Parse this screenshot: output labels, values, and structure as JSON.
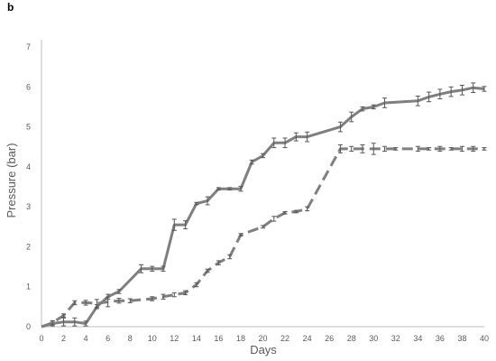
{
  "panel_label": "b",
  "chart_data": {
    "type": "line",
    "title": "",
    "xlabel": "Days",
    "ylabel": "Pressure (bar)",
    "xlim": [
      0,
      40
    ],
    "ylim": [
      0,
      7
    ],
    "xticks": [
      0,
      2,
      4,
      6,
      8,
      10,
      12,
      14,
      16,
      18,
      20,
      22,
      24,
      26,
      28,
      30,
      32,
      34,
      36,
      38,
      40
    ],
    "yticks": [
      0,
      1,
      2,
      3,
      4,
      5,
      6,
      7
    ],
    "grid": false,
    "legend": "none",
    "series": [
      {
        "style": "solid",
        "color": "#7f7f7f",
        "points": [
          {
            "x": 0,
            "y": 0,
            "err": 0
          },
          {
            "x": 1,
            "y": 0.08,
            "err": 0.06
          },
          {
            "x": 2,
            "y": 0.12,
            "err": 0.1
          },
          {
            "x": 3,
            "y": 0.12,
            "err": 0.1
          },
          {
            "x": 4,
            "y": 0.08,
            "err": 0.06
          },
          {
            "x": 5,
            "y": 0.5,
            "err": 0.05
          },
          {
            "x": 6,
            "y": 0.75,
            "err": 0.06
          },
          {
            "x": 7,
            "y": 0.88,
            "err": 0.05
          },
          {
            "x": 9,
            "y": 1.45,
            "err": 0.1
          },
          {
            "x": 10,
            "y": 1.45,
            "err": 0.06
          },
          {
            "x": 11,
            "y": 1.45,
            "err": 0.06
          },
          {
            "x": 12,
            "y": 2.55,
            "err": 0.14
          },
          {
            "x": 13,
            "y": 2.55,
            "err": 0.1
          },
          {
            "x": 14,
            "y": 3.08,
            "err": 0.03
          },
          {
            "x": 15,
            "y": 3.15,
            "err": 0.1
          },
          {
            "x": 16,
            "y": 3.45,
            "err": 0.03
          },
          {
            "x": 17,
            "y": 3.45,
            "err": 0.03
          },
          {
            "x": 18,
            "y": 3.45,
            "err": 0.06
          },
          {
            "x": 19,
            "y": 4.12,
            "err": 0.05
          },
          {
            "x": 20,
            "y": 4.28,
            "err": 0.05
          },
          {
            "x": 21,
            "y": 4.6,
            "err": 0.12
          },
          {
            "x": 22,
            "y": 4.6,
            "err": 0.12
          },
          {
            "x": 23,
            "y": 4.75,
            "err": 0.1
          },
          {
            "x": 24,
            "y": 4.75,
            "err": 0.12
          },
          {
            "x": 27,
            "y": 5.0,
            "err": 0.12
          },
          {
            "x": 28,
            "y": 5.25,
            "err": 0.12
          },
          {
            "x": 29,
            "y": 5.45,
            "err": 0.05
          },
          {
            "x": 30,
            "y": 5.5,
            "err": 0.05
          },
          {
            "x": 31,
            "y": 5.6,
            "err": 0.12
          },
          {
            "x": 34,
            "y": 5.65,
            "err": 0.12
          },
          {
            "x": 35,
            "y": 5.75,
            "err": 0.12
          },
          {
            "x": 36,
            "y": 5.82,
            "err": 0.12
          },
          {
            "x": 37,
            "y": 5.88,
            "err": 0.12
          },
          {
            "x": 38,
            "y": 5.92,
            "err": 0.12
          },
          {
            "x": 39,
            "y": 5.98,
            "err": 0.12
          },
          {
            "x": 40,
            "y": 5.95,
            "err": 0.06
          }
        ]
      },
      {
        "style": "dashed",
        "color": "#7f7f7f",
        "points": [
          {
            "x": 0,
            "y": 0,
            "err": 0
          },
          {
            "x": 1,
            "y": 0.1,
            "err": 0.05
          },
          {
            "x": 2,
            "y": 0.28,
            "err": 0.04
          },
          {
            "x": 3,
            "y": 0.6,
            "err": 0.05
          },
          {
            "x": 4,
            "y": 0.6,
            "err": 0.06
          },
          {
            "x": 5,
            "y": 0.58,
            "err": 0.1
          },
          {
            "x": 6,
            "y": 0.62,
            "err": 0.12
          },
          {
            "x": 7,
            "y": 0.65,
            "err": 0.06
          },
          {
            "x": 8,
            "y": 0.65,
            "err": 0.05
          },
          {
            "x": 10,
            "y": 0.7,
            "err": 0.05
          },
          {
            "x": 11,
            "y": 0.75,
            "err": 0.06
          },
          {
            "x": 12,
            "y": 0.8,
            "err": 0.05
          },
          {
            "x": 13,
            "y": 0.85,
            "err": 0.05
          },
          {
            "x": 14,
            "y": 1.05,
            "err": 0.05
          },
          {
            "x": 15,
            "y": 1.4,
            "err": 0.04
          },
          {
            "x": 16,
            "y": 1.6,
            "err": 0.05
          },
          {
            "x": 17,
            "y": 1.75,
            "err": 0.05
          },
          {
            "x": 18,
            "y": 2.3,
            "err": 0.03
          },
          {
            "x": 20,
            "y": 2.5,
            "err": 0.03
          },
          {
            "x": 21,
            "y": 2.7,
            "err": 0.06
          },
          {
            "x": 22,
            "y": 2.85,
            "err": 0.03
          },
          {
            "x": 23,
            "y": 2.88,
            "err": 0.03
          },
          {
            "x": 24,
            "y": 2.95,
            "err": 0.05
          },
          {
            "x": 27,
            "y": 4.45,
            "err": 0.1
          },
          {
            "x": 28,
            "y": 4.45,
            "err": 0.06
          },
          {
            "x": 29,
            "y": 4.45,
            "err": 0.1
          },
          {
            "x": 30,
            "y": 4.45,
            "err": 0.14
          },
          {
            "x": 31,
            "y": 4.45,
            "err": 0.06
          },
          {
            "x": 32,
            "y": 4.45,
            "err": 0.03
          },
          {
            "x": 34,
            "y": 4.45,
            "err": 0.06
          },
          {
            "x": 35,
            "y": 4.45,
            "err": 0.03
          },
          {
            "x": 36,
            "y": 4.45,
            "err": 0.06
          },
          {
            "x": 37,
            "y": 4.45,
            "err": 0.03
          },
          {
            "x": 38,
            "y": 4.45,
            "err": 0.06
          },
          {
            "x": 39,
            "y": 4.45,
            "err": 0.06
          },
          {
            "x": 40,
            "y": 4.45,
            "err": 0.03
          }
        ]
      }
    ]
  }
}
